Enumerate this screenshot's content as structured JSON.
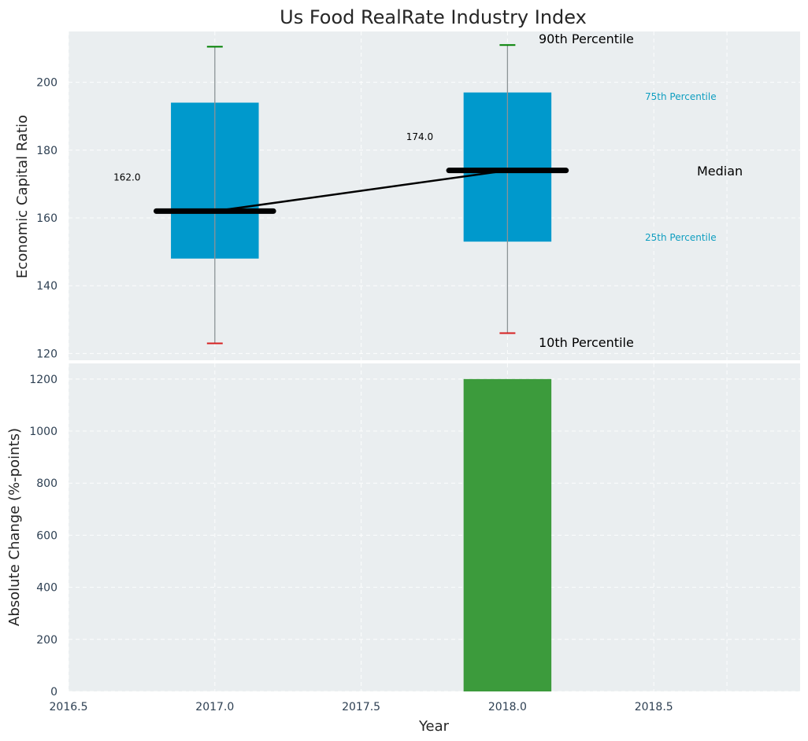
{
  "colors": {
    "panel_bg": "#eaeef0",
    "box_fill": "#0099cc",
    "bar_fill": "#3c9b3c",
    "median": "#000000",
    "whisker": "#8c9396",
    "cap_high": "#008000",
    "cap_low": "#d62020",
    "small_annotation": "#0f9ec0"
  },
  "chart_data": [
    {
      "type": "box",
      "title": "Us Food RealRate Industry Index",
      "ylabel": "Economic Capital Ratio",
      "xlim": [
        2016.5,
        2019.0
      ],
      "ylim": [
        118,
        215
      ],
      "yticks": [
        120,
        140,
        160,
        180,
        200
      ],
      "boxes": [
        {
          "x": 2017.0,
          "p10": 123,
          "p25": 148,
          "median": 162,
          "p75": 194,
          "p90": 210.5,
          "label": "162.0"
        },
        {
          "x": 2018.0,
          "p10": 126,
          "p25": 153,
          "median": 174,
          "p75": 197,
          "p90": 211,
          "label": "174.0"
        }
      ],
      "median_line": {
        "x": [
          2017.0,
          2018.0
        ],
        "y": [
          162,
          174
        ]
      },
      "annotations": {
        "p90": "90th Percentile",
        "p75": "75th Percentile",
        "median": "Median",
        "p25": "25th Percentile",
        "p10": "10th Percentile"
      }
    },
    {
      "type": "bar",
      "xlabel": "Year",
      "ylabel": "Absolute Change (%-points)",
      "xlim": [
        2016.5,
        2019.0
      ],
      "ylim": [
        0,
        1260
      ],
      "xticks": [
        2016.5,
        2017.0,
        2017.5,
        2018.0,
        2018.5
      ],
      "xtick_labels": [
        "2016.5",
        "2017.0",
        "2017.5",
        "2018.0",
        "2018.5"
      ],
      "yticks": [
        0,
        200,
        400,
        600,
        800,
        1000,
        1200
      ],
      "x": [
        2018.0
      ],
      "values": [
        1200
      ]
    }
  ]
}
